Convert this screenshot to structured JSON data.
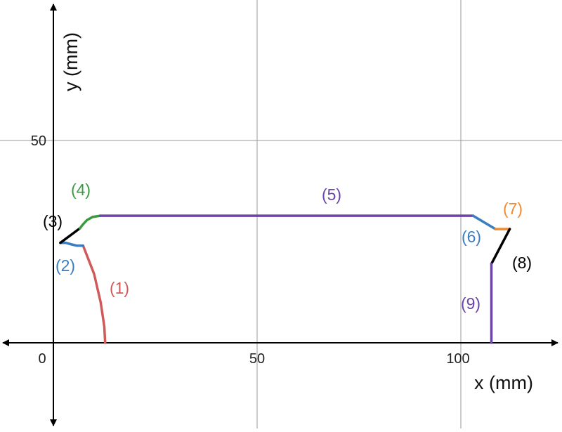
{
  "axes": {
    "x_label": "x (mm)",
    "y_label": "y (mm)",
    "x_ticks": [
      {
        "value": 0,
        "label": "0"
      },
      {
        "value": 50,
        "label": "50"
      },
      {
        "value": 100,
        "label": "100"
      }
    ],
    "y_ticks": [
      {
        "value": 50,
        "label": "50"
      }
    ],
    "xlim": [
      -13,
      124
    ],
    "ylim": [
      -21,
      84
    ],
    "grid": true
  },
  "segments": [
    {
      "label": "(1)",
      "color": "#d05a5a",
      "points": [
        [
          12.7,
          0
        ],
        [
          12.5,
          4
        ],
        [
          11.6,
          10
        ],
        [
          10,
          17
        ],
        [
          7.3,
          24
        ]
      ]
    },
    {
      "label": "(2)",
      "color": "#3b7dc0",
      "points": [
        [
          1.7,
          24.7
        ],
        [
          3,
          24.7
        ],
        [
          4.5,
          24.3
        ],
        [
          5.8,
          24
        ],
        [
          7.3,
          24
        ]
      ]
    },
    {
      "label": "(3)",
      "color": "#000000",
      "points": [
        [
          1.7,
          24.7
        ],
        [
          6.5,
          28.3
        ]
      ]
    },
    {
      "label": "(4)",
      "color": "#3a9a40",
      "points": [
        [
          6.5,
          28.3
        ],
        [
          7.2,
          29.2
        ],
        [
          8.2,
          30.3
        ],
        [
          9.6,
          31.1
        ],
        [
          11.5,
          31.4
        ]
      ]
    },
    {
      "label": "(5)",
      "color": "#6b45a8",
      "points": [
        [
          11.5,
          31.4
        ],
        [
          103,
          31.4
        ]
      ]
    },
    {
      "label": "(6)",
      "color": "#3b7dc0",
      "points": [
        [
          103,
          31.4
        ],
        [
          105.5,
          29.9
        ],
        [
          108.5,
          28.1
        ]
      ]
    },
    {
      "label": "(7)",
      "color": "#f28a2e",
      "points": [
        [
          108.5,
          28.1
        ],
        [
          112,
          28.1
        ]
      ]
    },
    {
      "label": "(8)",
      "color": "#000000",
      "points": [
        [
          112,
          28.1
        ],
        [
          107.5,
          19.5
        ]
      ]
    },
    {
      "label": "(9)",
      "color": "#6b45a8",
      "points": [
        [
          107.5,
          19.5
        ],
        [
          107.5,
          0
        ]
      ]
    }
  ]
}
